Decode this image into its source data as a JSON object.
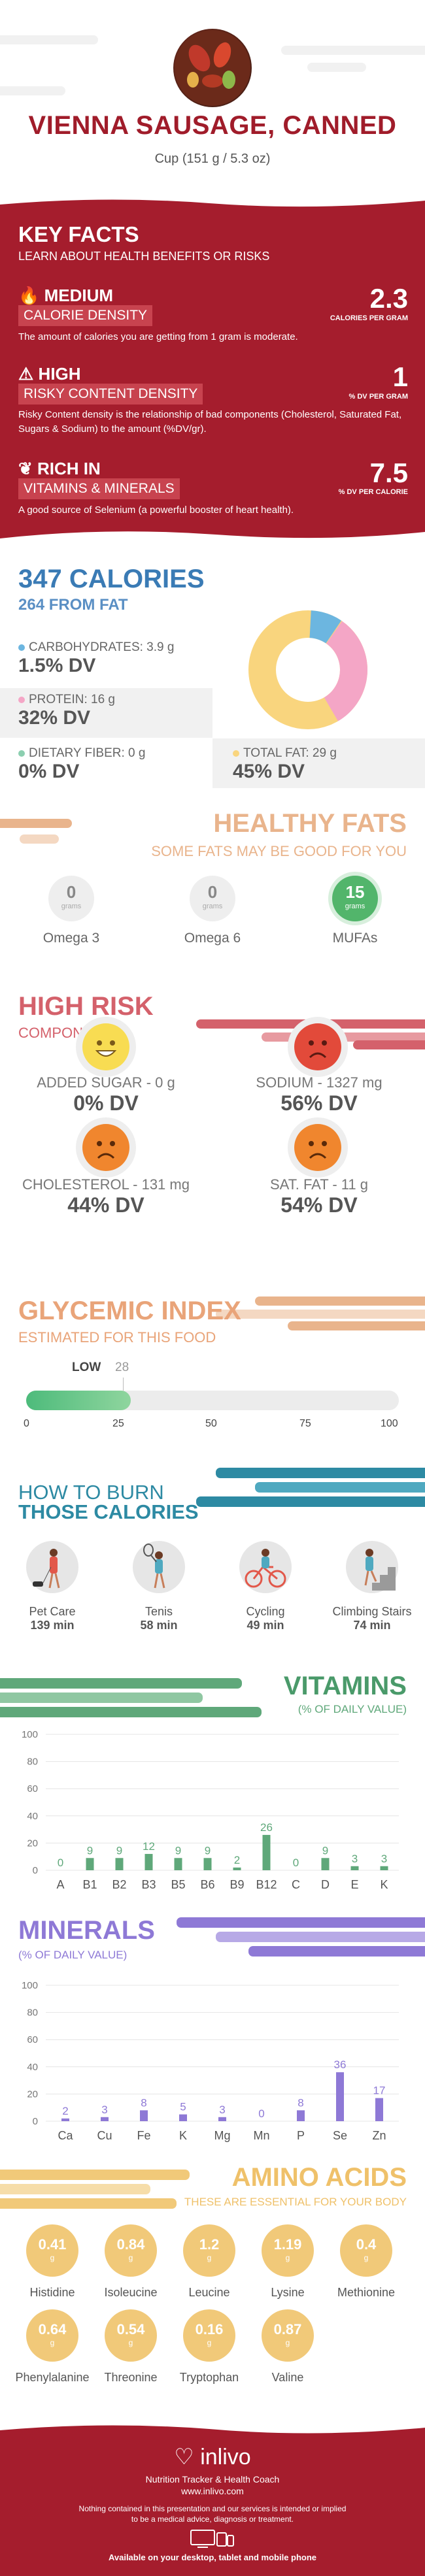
{
  "header": {
    "title": "VIENNA SAUSAGE, CANNED",
    "serving": "Cup (151 g / 5.3 oz)"
  },
  "key_facts": {
    "title": "KEY FACTS",
    "subtitle": "LEARN ABOUT HEALTH BENEFITS OR RISKS",
    "items": [
      {
        "level": "MEDIUM",
        "label": "CALORIE DENSITY",
        "value": "2.3",
        "unit": "CALORIES PER GRAM",
        "desc": "The amount of calories you are getting from 1 gram is moderate."
      },
      {
        "level": "HIGH",
        "label": "RISKY CONTENT DENSITY",
        "value": "1",
        "unit": "% DV PER GRAM",
        "desc": "Risky Content density is the relationship of bad components (Cholesterol, Saturated Fat, Sugars & Sodium) to the amount (%DV/gr)."
      },
      {
        "level": "RICH  IN",
        "label": "VITAMINS & MINERALS",
        "value": "7.5",
        "unit": "% DV PER CALORIE",
        "desc": "A good source of Selenium (a powerful booster of heart health)."
      }
    ]
  },
  "calories": {
    "title": "347 CALORIES",
    "from_fat": "264 FROM FAT",
    "carbs_label": "CARBOHYDRATES: 3.9 g",
    "carbs_dv": "1.5% DV",
    "protein_label": "PROTEIN: 16 g",
    "protein_dv": "32% DV",
    "fiber_label": "DIETARY FIBER: 0 g",
    "fiber_dv": "0% DV",
    "fat_label": "TOTAL FAT: 29 g",
    "fat_dv": "45% DV",
    "colors": {
      "carbs": "#6cb6e0",
      "protein": "#f4a6c6",
      "fiber": "#8ccfb0",
      "fat": "#f9d57e"
    }
  },
  "healthy_fats": {
    "title": "HEALTHY FATS",
    "subtitle": "SOME FATS MAY BE GOOD FOR YOU",
    "items": [
      {
        "value": "0",
        "unit": "grams",
        "label": "Omega 3"
      },
      {
        "value": "0",
        "unit": "grams",
        "label": "Omega 6"
      },
      {
        "value": "15",
        "unit": "grams",
        "label": "MUFAs"
      }
    ]
  },
  "high_risk": {
    "title": "HIGH RISK",
    "subtitle": "COMPONENTS",
    "items": [
      {
        "label": "ADDED SUGAR - 0 g",
        "dv": "0% DV"
      },
      {
        "label": "SODIUM - 1327 mg",
        "dv": "56% DV"
      },
      {
        "label": "CHOLESTEROL - 131 mg",
        "dv": "44% DV"
      },
      {
        "label": "SAT. FAT - 11 g",
        "dv": "54% DV"
      }
    ]
  },
  "glycemic": {
    "title": "GLYCEMIC INDEX",
    "subtitle": "ESTIMATED FOR THIS FOOD",
    "level": "LOW",
    "value": "28",
    "fraction": 0.28,
    "ticks": [
      "0",
      "25",
      "50",
      "75",
      "100"
    ]
  },
  "burn": {
    "title1": "HOW TO BURN",
    "title2": "THOSE CALORIES",
    "items": [
      {
        "label": "Pet Care",
        "time": "139 min"
      },
      {
        "label": "Tenis",
        "time": "58 min"
      },
      {
        "label": "Cycling",
        "time": "49 min"
      },
      {
        "label": "Climbing Stairs",
        "time": "74 min"
      }
    ]
  },
  "chart_data": [
    {
      "type": "bar",
      "title": "VITAMINS",
      "subtitle": "(% OF DAILY VALUE)",
      "categories": [
        "A",
        "B1",
        "B2",
        "B3",
        "B5",
        "B6",
        "B9",
        "B12",
        "C",
        "D",
        "E",
        "K"
      ],
      "values": [
        0,
        9,
        9,
        12,
        9,
        9,
        2,
        26,
        0,
        9,
        3,
        3
      ],
      "ylim": [
        0,
        100
      ],
      "yticks": [
        "100",
        "80",
        "60",
        "40",
        "20",
        "0"
      ],
      "color": "#5fa87a"
    },
    {
      "type": "bar",
      "title": "MINERALS",
      "subtitle": "(% OF DAILY VALUE)",
      "categories": [
        "Ca",
        "Cu",
        "Fe",
        "K",
        "Mg",
        "Mn",
        "P",
        "Se",
        "Zn"
      ],
      "values": [
        2,
        3,
        8,
        5,
        3,
        0,
        8,
        36,
        17
      ],
      "ylim": [
        0,
        100
      ],
      "yticks": [
        "100",
        "80",
        "60",
        "40",
        "20",
        "0"
      ],
      "color": "#8e79d6"
    }
  ],
  "amino": {
    "title": "AMINO ACIDS",
    "subtitle": "THESE ARE ESSENTIAL FOR YOUR BODY",
    "unit": "g",
    "items": [
      {
        "value": "0.41",
        "label": "Histidine"
      },
      {
        "value": "0.84",
        "label": "Isoleucine"
      },
      {
        "value": "1.2",
        "label": "Leucine"
      },
      {
        "value": "1.19",
        "label": "Lysine"
      },
      {
        "value": "0.4",
        "label": "Methionine"
      },
      {
        "value": "0.64",
        "label": "Phenylalanine"
      },
      {
        "value": "0.54",
        "label": "Threonine"
      },
      {
        "value": "0.16",
        "label": "Tryptophan"
      },
      {
        "value": "0.87",
        "label": "Valine"
      }
    ]
  },
  "footer": {
    "brand": "inlivo",
    "tagline": "Nutrition Tracker & Health Coach",
    "url": "www.inlivo.com",
    "disclaimer1": "Nothing contained in this presentation and our services is intended or implied",
    "disclaimer2": "to be a medical advice, diagnosis or treatment.",
    "available": "Available on your desktop, tablet and mobile phone"
  }
}
